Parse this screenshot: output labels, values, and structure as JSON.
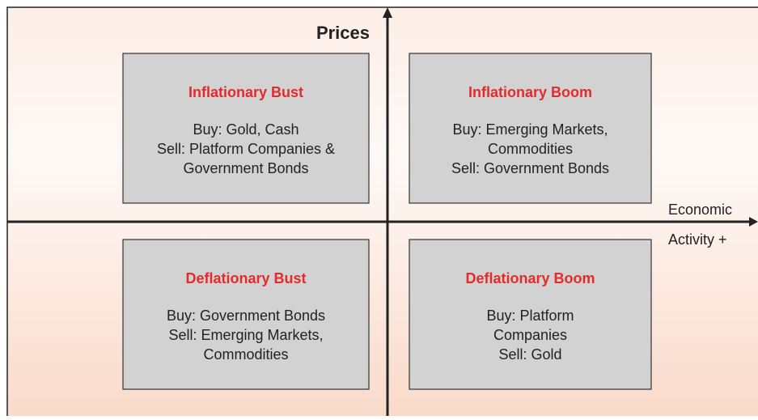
{
  "axes": {
    "y_label": "Prices",
    "x_label_1": "Economic",
    "x_label_2": "Activity +"
  },
  "quadrants": [
    {
      "title": "Inflationary Bust",
      "lines": [
        "Buy: Gold, Cash",
        "Sell: Platform Companies &",
        "Government Bonds"
      ]
    },
    {
      "title": "Inflationary Boom",
      "lines": [
        "Buy: Emerging Markets,",
        "Commodities",
        "Sell: Government Bonds"
      ]
    },
    {
      "title": "Deflationary Bust",
      "lines": [
        "Buy: Government Bonds",
        "Sell: Emerging Markets,",
        "Commodities"
      ]
    },
    {
      "title": "Deflationary Boom",
      "lines": [
        "Buy: Platform",
        "Companies",
        "Sell: Gold"
      ]
    }
  ]
}
